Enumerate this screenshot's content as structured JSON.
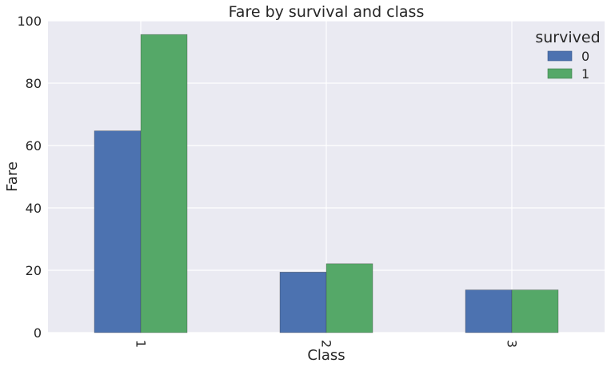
{
  "chart_data": {
    "type": "bar",
    "title": "Fare by survival and class",
    "xlabel": "Class",
    "ylabel": "Fare",
    "categories": [
      "1",
      "2",
      "3"
    ],
    "ylim": [
      0,
      100
    ],
    "yticks": [
      0,
      20,
      40,
      60,
      80,
      100
    ],
    "grid": true,
    "legend_title": "survived",
    "legend_position": "top-right",
    "series": [
      {
        "name": "0",
        "values": [
          64.7,
          19.4,
          13.7
        ],
        "color": "#4c72b0"
      },
      {
        "name": "1",
        "values": [
          95.6,
          22.1,
          13.7
        ],
        "color": "#55a868"
      }
    ]
  }
}
